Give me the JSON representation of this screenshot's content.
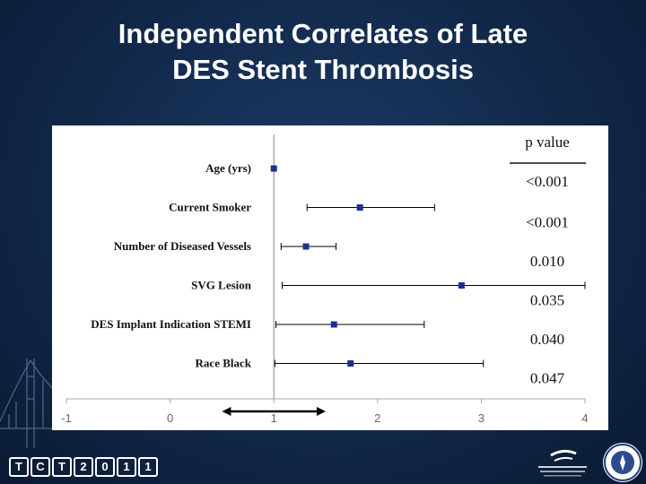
{
  "slide": {
    "title_line1": "Independent Correlates of Late",
    "title_line2": "DES Stent Thrombosis"
  },
  "footer": {
    "left_logo_chars": [
      "T",
      "C",
      "T",
      "2",
      "0",
      "1",
      "1"
    ]
  },
  "colors": {
    "background": "#112849",
    "panel": "#ffffff",
    "marker": "#1f2f8f",
    "axis_tick_text": "#666666",
    "label_text": "#111111"
  },
  "chart_data": {
    "type": "scatter",
    "subtype": "forest-plot",
    "title": "",
    "xlabel": "",
    "ylabel": "",
    "xlim": [
      -1,
      4
    ],
    "x_ticks": [
      -1,
      0,
      1,
      2,
      3,
      4
    ],
    "x_tick_labels": [
      "-1",
      "0",
      "1",
      "2",
      "3",
      "4"
    ],
    "reference_line_x": 1,
    "pvalue_header": "p value",
    "rows": [
      {
        "label": "Age (yrs)",
        "estimate": 1.0,
        "ci_low": 1.0,
        "ci_high": 1.0,
        "p_value": "<0.001"
      },
      {
        "label": "Current Smoker",
        "estimate": 1.83,
        "ci_low": 1.32,
        "ci_high": 2.55,
        "p_value": "<0.001"
      },
      {
        "label": "Number of Diseased Vessels",
        "estimate": 1.31,
        "ci_low": 1.07,
        "ci_high": 1.6,
        "p_value": "0.010"
      },
      {
        "label": "SVG Lesion",
        "estimate": 2.81,
        "ci_low": 1.08,
        "ci_high": 4.0,
        "p_value": "0.035"
      },
      {
        "label": "DES Implant Indication STEMI",
        "estimate": 1.58,
        "ci_low": 1.02,
        "ci_high": 2.45,
        "p_value": "0.040"
      },
      {
        "label": "Race Black",
        "estimate": 1.74,
        "ci_low": 1.01,
        "ci_high": 3.02,
        "p_value": "0.047"
      }
    ],
    "grid": false,
    "legend": "none",
    "annotation": "double-headed arrow spanning x 0.5 to 1.5 below axis"
  }
}
